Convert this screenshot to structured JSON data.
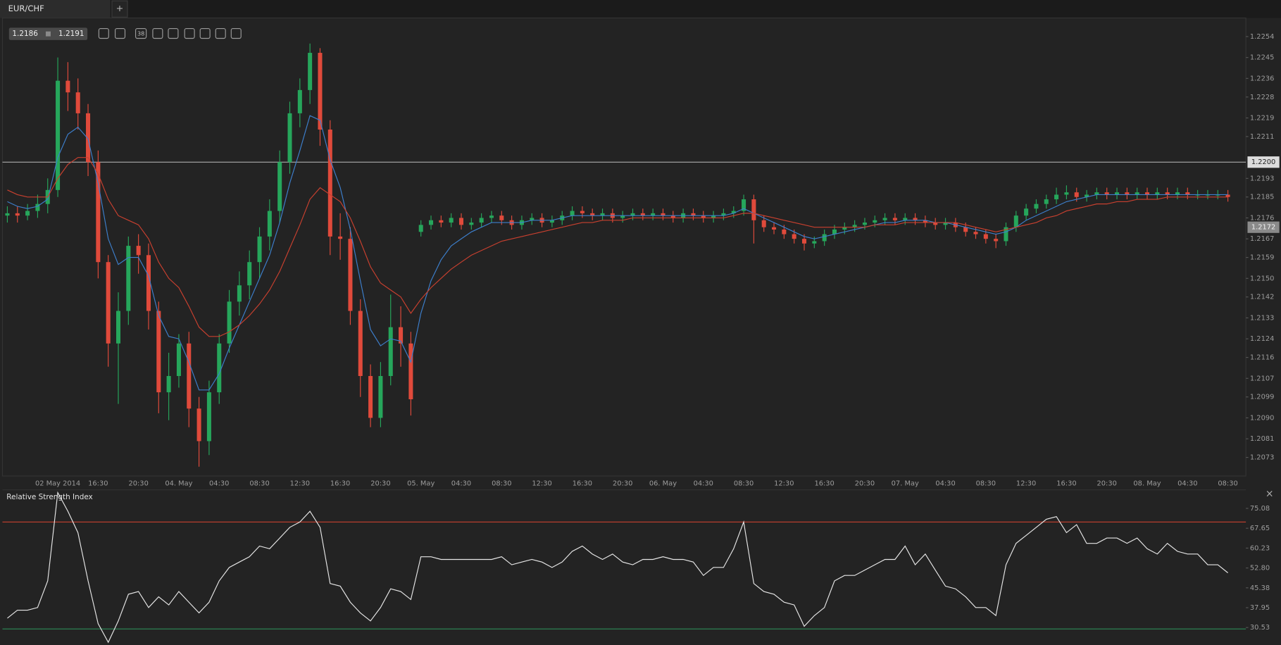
{
  "tab": {
    "symbol": "EUR/CHF",
    "add": "+"
  },
  "toolbar": {
    "bid": "1.2186",
    "ask": "1.2191",
    "fib": "38"
  },
  "panel_close": "×",
  "chart_data": [
    {
      "type": "candlestick",
      "categories": [
        null,
        null,
        null,
        null,
        null,
        "02 May 2014",
        null,
        null,
        null,
        "16:30",
        null,
        null,
        null,
        "20:30",
        null,
        null,
        null,
        "04. May",
        null,
        null,
        null,
        "04:30",
        null,
        null,
        null,
        "08:30",
        null,
        null,
        null,
        "12:30",
        null,
        null,
        null,
        "16:30",
        null,
        null,
        null,
        "20:30",
        null,
        null,
        null,
        "05. May",
        null,
        null,
        null,
        "04:30",
        null,
        null,
        null,
        "08:30",
        null,
        null,
        null,
        "12:30",
        null,
        null,
        null,
        "16:30",
        null,
        null,
        null,
        "20:30",
        null,
        null,
        null,
        "06. May",
        null,
        null,
        null,
        "04:30",
        null,
        null,
        null,
        "08:30",
        null,
        null,
        null,
        "12:30",
        null,
        null,
        null,
        "16:30",
        null,
        null,
        null,
        "20:30",
        null,
        null,
        null,
        "07. May",
        null,
        null,
        null,
        "04:30",
        null,
        null,
        null,
        "08:30",
        null,
        null,
        null,
        "12:30",
        null,
        null,
        null,
        "16:30",
        null,
        null,
        null,
        "20:30",
        null,
        null,
        null,
        "08. May",
        null,
        null,
        null,
        "04:30",
        null,
        null,
        null,
        "08:30"
      ],
      "open": [
        1.2177,
        1.2178,
        1.2177,
        1.2179,
        1.2182,
        1.2188,
        1.2235,
        1.223,
        1.2221,
        1.22,
        1.2157,
        1.2122,
        1.2136,
        1.2164,
        1.216,
        1.2136,
        1.2101,
        1.2108,
        1.2122,
        1.2094,
        1.208,
        1.2101,
        1.2122,
        1.214,
        1.2147,
        1.2157,
        1.2168,
        1.2179,
        1.22,
        1.2221,
        1.2231,
        1.2247,
        1.2214,
        1.2168,
        1.2167,
        1.2136,
        1.2108,
        1.209,
        1.2108,
        1.2129,
        1.2122,
        1.217,
        1.2173,
        1.2175,
        1.2174,
        1.2176,
        1.2173,
        1.2174,
        1.2176,
        1.2177,
        1.2175,
        1.2173,
        1.2175,
        1.2176,
        1.2174,
        1.2175,
        1.2177,
        1.2179,
        1.2178,
        1.2177,
        1.2178,
        1.2176,
        1.2177,
        1.2178,
        1.2177,
        1.2178,
        1.2177,
        1.2176,
        1.2178,
        1.2177,
        1.2176,
        1.2177,
        1.2178,
        1.2179,
        1.2184,
        1.2175,
        1.2172,
        1.2171,
        1.2169,
        1.2167,
        1.2165,
        1.2166,
        1.2169,
        1.2171,
        1.2172,
        1.2173,
        1.2174,
        1.2175,
        1.2176,
        1.2175,
        1.2176,
        1.2175,
        1.2174,
        1.2173,
        1.2174,
        1.2172,
        1.217,
        1.2169,
        1.2167,
        1.2166,
        1.2172,
        1.2177,
        1.218,
        1.2182,
        1.2184,
        1.2186,
        1.2187,
        1.2185,
        1.2186,
        1.2187,
        1.2186,
        1.2187,
        1.2186,
        1.2187,
        1.2186,
        1.2187,
        1.2186,
        1.2187,
        1.2186,
        1.2186,
        1.2186,
        1.2186
      ],
      "high": [
        1.2181,
        1.2181,
        1.2182,
        1.2186,
        1.2193,
        1.2245,
        1.2243,
        1.2236,
        1.2225,
        1.2205,
        1.216,
        1.2144,
        1.2168,
        1.2169,
        1.2165,
        1.214,
        1.2118,
        1.2126,
        1.2127,
        1.2099,
        1.2106,
        1.2126,
        1.2145,
        1.2153,
        1.2162,
        1.2172,
        1.2184,
        1.2205,
        1.2226,
        1.2236,
        1.2251,
        1.2249,
        1.2218,
        1.2178,
        1.2172,
        1.2141,
        1.2113,
        1.2114,
        1.2143,
        1.2138,
        1.2127,
        1.2175,
        1.2177,
        1.2177,
        1.2178,
        1.2178,
        1.2176,
        1.2178,
        1.2179,
        1.2179,
        1.2177,
        1.2177,
        1.2178,
        1.2178,
        1.2177,
        1.2179,
        1.2181,
        1.2181,
        1.218,
        1.218,
        1.218,
        1.2179,
        1.218,
        1.218,
        1.218,
        1.218,
        1.2179,
        1.218,
        1.218,
        1.2179,
        1.2179,
        1.218,
        1.2181,
        1.2186,
        1.2186,
        1.2177,
        1.2174,
        1.2173,
        1.2171,
        1.2169,
        1.2168,
        1.2171,
        1.2173,
        1.2174,
        1.2175,
        1.2176,
        1.2177,
        1.2178,
        1.2178,
        1.2178,
        1.2178,
        1.2177,
        1.2176,
        1.2176,
        1.2176,
        1.2174,
        1.2172,
        1.2171,
        1.2169,
        1.2174,
        1.2179,
        1.2182,
        1.2184,
        1.2186,
        1.2189,
        1.219,
        1.2189,
        1.2188,
        1.2189,
        1.2189,
        1.2189,
        1.2189,
        1.2189,
        1.2189,
        1.2189,
        1.2189,
        1.2189,
        1.2189,
        1.2188,
        1.2188,
        1.2188,
        1.2188
      ],
      "low": [
        1.2174,
        1.2174,
        1.2175,
        1.2176,
        1.2178,
        1.2185,
        1.2222,
        1.2214,
        1.2194,
        1.215,
        1.2112,
        1.2096,
        1.213,
        1.2152,
        1.2128,
        1.2092,
        1.2089,
        1.2103,
        1.2086,
        1.2069,
        1.2074,
        1.2096,
        1.2118,
        1.2134,
        1.2141,
        1.215,
        1.2162,
        1.2174,
        1.2195,
        1.2215,
        1.2225,
        1.2207,
        1.216,
        1.2158,
        1.213,
        1.2099,
        1.2086,
        1.2086,
        1.2104,
        1.2112,
        1.2091,
        1.2168,
        1.2171,
        1.2172,
        1.2172,
        1.2171,
        1.2171,
        1.2172,
        1.2174,
        1.2173,
        1.2171,
        1.2171,
        1.2173,
        1.2172,
        1.2172,
        1.2173,
        1.2175,
        1.2176,
        1.2175,
        1.2175,
        1.2174,
        1.2174,
        1.2175,
        1.2175,
        1.2175,
        1.2175,
        1.2174,
        1.2174,
        1.2175,
        1.2174,
        1.2174,
        1.2175,
        1.2176,
        1.2177,
        1.2165,
        1.217,
        1.2169,
        1.2167,
        1.2165,
        1.2162,
        1.2163,
        1.2164,
        1.2167,
        1.2169,
        1.217,
        1.2171,
        1.2172,
        1.2173,
        1.2173,
        1.2173,
        1.2173,
        1.2172,
        1.2171,
        1.2171,
        1.217,
        1.2168,
        1.2167,
        1.2165,
        1.2163,
        1.2164,
        1.217,
        1.2175,
        1.2178,
        1.218,
        1.2182,
        1.2184,
        1.2183,
        1.2183,
        1.2184,
        1.2184,
        1.2184,
        1.2184,
        1.2184,
        1.2184,
        1.2184,
        1.2184,
        1.2184,
        1.2184,
        1.2184,
        1.2184,
        1.2184,
        1.2183
      ],
      "close": [
        1.2178,
        1.2177,
        1.2179,
        1.2182,
        1.2188,
        1.2235,
        1.223,
        1.2221,
        1.22,
        1.2157,
        1.2122,
        1.2136,
        1.2164,
        1.216,
        1.2136,
        1.2101,
        1.2108,
        1.2122,
        1.2094,
        1.208,
        1.2101,
        1.2122,
        1.214,
        1.2147,
        1.2157,
        1.2168,
        1.2179,
        1.22,
        1.2221,
        1.2231,
        1.2247,
        1.2214,
        1.2168,
        1.2167,
        1.2136,
        1.2108,
        1.209,
        1.2108,
        1.2129,
        1.2122,
        1.2098,
        1.2173,
        1.2175,
        1.2174,
        1.2176,
        1.2173,
        1.2174,
        1.2176,
        1.2177,
        1.2175,
        1.2173,
        1.2175,
        1.2176,
        1.2174,
        1.2175,
        1.2177,
        1.2179,
        1.2178,
        1.2177,
        1.2178,
        1.2176,
        1.2177,
        1.2178,
        1.2177,
        1.2178,
        1.2177,
        1.2176,
        1.2178,
        1.2177,
        1.2176,
        1.2177,
        1.2178,
        1.2179,
        1.2184,
        1.2175,
        1.2172,
        1.2171,
        1.2169,
        1.2167,
        1.2165,
        1.2166,
        1.2169,
        1.2171,
        1.2172,
        1.2173,
        1.2174,
        1.2175,
        1.2176,
        1.2175,
        1.2176,
        1.2175,
        1.2174,
        1.2173,
        1.2174,
        1.2172,
        1.217,
        1.2169,
        1.2167,
        1.2166,
        1.2172,
        1.2177,
        1.218,
        1.2182,
        1.2184,
        1.2186,
        1.2187,
        1.2185,
        1.2186,
        1.2187,
        1.2186,
        1.2187,
        1.2186,
        1.2187,
        1.2186,
        1.2187,
        1.2186,
        1.2187,
        1.2186,
        1.2186,
        1.2186,
        1.2186,
        1.2185
      ],
      "up_color": "#26a65b",
      "down_color": "#e04a3b",
      "series": [
        {
          "color": "#3d7fcc",
          "values": [
            1.2183,
            1.2181,
            1.218,
            1.2181,
            1.2184,
            1.2202,
            1.2212,
            1.2215,
            1.221,
            1.2191,
            1.2167,
            1.2156,
            1.2159,
            1.2159,
            1.2151,
            1.2134,
            1.2125,
            1.2124,
            1.2114,
            1.2102,
            1.2102,
            1.2109,
            1.212,
            1.213,
            1.214,
            1.215,
            1.216,
            1.2174,
            1.2191,
            1.2205,
            1.222,
            1.2218,
            1.2201,
            1.2189,
            1.2171,
            1.2149,
            1.2128,
            1.2121,
            1.2124,
            1.2123,
            1.2114,
            1.2135,
            1.2149,
            1.2158,
            1.2164,
            1.2167,
            1.217,
            1.2172,
            1.2174,
            1.2174,
            1.2174,
            1.2174,
            1.2175,
            1.2175,
            1.2175,
            1.2176,
            1.2177,
            1.2177,
            1.2177,
            1.2177,
            1.2177,
            1.2177,
            1.2177,
            1.2177,
            1.2177,
            1.2177,
            1.2177,
            1.2177,
            1.2177,
            1.2177,
            1.2177,
            1.2177,
            1.2178,
            1.218,
            1.2178,
            1.2176,
            1.2174,
            1.2172,
            1.217,
            1.2168,
            1.2167,
            1.2168,
            1.2169,
            1.217,
            1.2171,
            1.2172,
            1.2173,
            1.2174,
            1.2174,
            1.2175,
            1.2175,
            1.2175,
            1.2174,
            1.2174,
            1.2173,
            1.2172,
            1.2171,
            1.217,
            1.2169,
            1.217,
            1.2172,
            1.2175,
            1.2177,
            1.2179,
            1.2181,
            1.2183,
            1.2184,
            1.2185,
            1.2186,
            1.2186,
            1.2186,
            1.2186,
            1.2186,
            1.2186,
            1.2186,
            1.2186,
            1.2186,
            1.2186,
            1.2186,
            1.2186,
            1.2186,
            1.2186
          ]
        },
        {
          "color": "#c9402f",
          "values": [
            1.2188,
            1.2186,
            1.2185,
            1.2185,
            1.2185,
            1.2193,
            1.2199,
            1.2202,
            1.2202,
            1.2195,
            1.2184,
            1.2177,
            1.2175,
            1.2173,
            1.2167,
            1.2157,
            1.215,
            1.2146,
            1.2138,
            1.2129,
            1.2125,
            1.2125,
            1.2127,
            1.213,
            1.2134,
            1.2139,
            1.2145,
            1.2153,
            1.2163,
            1.2173,
            1.2184,
            1.2189,
            1.2186,
            1.2183,
            1.2176,
            1.2166,
            1.2155,
            1.2148,
            1.2145,
            1.2142,
            1.2135,
            1.2141,
            1.2146,
            1.215,
            1.2154,
            1.2157,
            1.216,
            1.2162,
            1.2164,
            1.2166,
            1.2167,
            1.2168,
            1.2169,
            1.217,
            1.2171,
            1.2172,
            1.2173,
            1.2174,
            1.2174,
            1.2175,
            1.2175,
            1.2175,
            1.2176,
            1.2176,
            1.2176,
            1.2176,
            1.2176,
            1.2176,
            1.2176,
            1.2176,
            1.2176,
            1.2176,
            1.2177,
            1.2178,
            1.2178,
            1.2177,
            1.2176,
            1.2175,
            1.2174,
            1.2173,
            1.2172,
            1.2172,
            1.2172,
            1.2172,
            1.2172,
            1.2172,
            1.2173,
            1.2173,
            1.2173,
            1.2174,
            1.2174,
            1.2174,
            1.2174,
            1.2174,
            1.2174,
            1.2173,
            1.2172,
            1.2171,
            1.217,
            1.2171,
            1.2172,
            1.2173,
            1.2174,
            1.2176,
            1.2177,
            1.2179,
            1.218,
            1.2181,
            1.2182,
            1.2182,
            1.2183,
            1.2183,
            1.2184,
            1.2184,
            1.2184,
            1.2185,
            1.2185,
            1.2185,
            1.2185,
            1.2185,
            1.2185,
            1.2185
          ]
        }
      ],
      "ylim": [
        1.2065,
        1.2262
      ],
      "yticks": [
        1.2254,
        1.2245,
        1.2236,
        1.2228,
        1.2219,
        1.2211,
        1.2193,
        1.2185,
        1.2176,
        1.2167,
        1.2159,
        {
          "value": 1.215,
          "label": "1.2150"
        },
        1.2142,
        1.2133,
        1.2124,
        1.2116,
        1.2107,
        1.2099,
        {
          "value": 1.209,
          "label": "1.2090"
        },
        1.2081,
        1.2073
      ],
      "hline": {
        "value": 1.22,
        "label": "1.2200"
      },
      "price_marker": 1.2172
    },
    {
      "type": "line",
      "title": "Relative Strength Index",
      "color": "#e6e6e6",
      "values": [
        34,
        37,
        37,
        38,
        48,
        81,
        74,
        66,
        48,
        32,
        25,
        33,
        43,
        44,
        38,
        42,
        39,
        44,
        40,
        36,
        40,
        48,
        53,
        55,
        57,
        61,
        60,
        64,
        68,
        70,
        74,
        68,
        47,
        46,
        40,
        36,
        33,
        38,
        45,
        44,
        41,
        57,
        57,
        56,
        56,
        56,
        56,
        56,
        56,
        57,
        54,
        55,
        56,
        55,
        53,
        55,
        59,
        61,
        58,
        56,
        58,
        55,
        54,
        56,
        56,
        57,
        56,
        56,
        55,
        50,
        53,
        53,
        60,
        70,
        47,
        44,
        43,
        40,
        39,
        31,
        35,
        38,
        48,
        50,
        50,
        52,
        54,
        56,
        56,
        61,
        54,
        58,
        52,
        46,
        45,
        42,
        38,
        38,
        35,
        54,
        62,
        65,
        68,
        71,
        72,
        66,
        69,
        62,
        62,
        64,
        64,
        62,
        64,
        60,
        58,
        62,
        59,
        58,
        58,
        54,
        54,
        51
      ],
      "ylim": [
        24,
        82
      ],
      "yticks": [
        75.08,
        67.65,
        60.23,
        {
          "value": 52.8,
          "label": "52.80"
        },
        45.38,
        37.95,
        30.53
      ],
      "levels": [
        {
          "value": 70,
          "color": "#c9402f"
        },
        {
          "value": 30,
          "color": "#2e8b57"
        }
      ]
    }
  ]
}
